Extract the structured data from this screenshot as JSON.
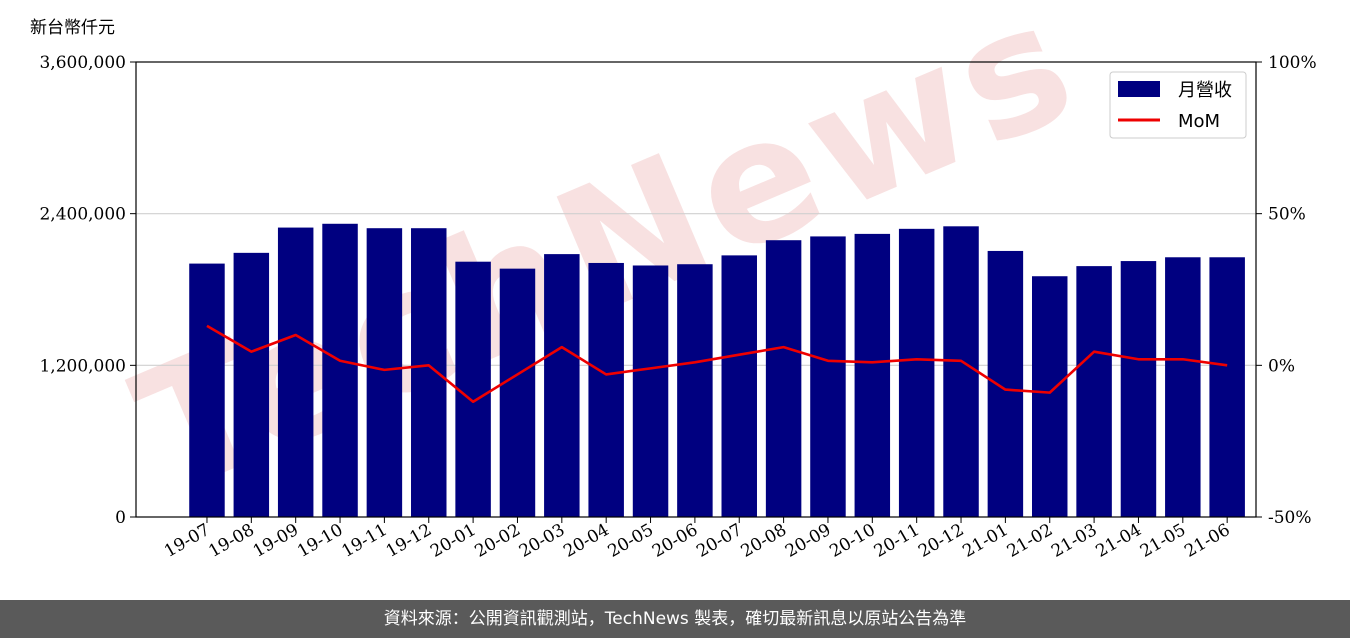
{
  "chart_data": {
    "type": "bar",
    "title": "",
    "ylabel_left": "新台幣仟元",
    "categories": [
      "19-07",
      "19-08",
      "19-09",
      "19-10",
      "19-11",
      "19-12",
      "20-01",
      "20-02",
      "20-03",
      "20-04",
      "20-05",
      "20-06",
      "20-07",
      "20-08",
      "20-09",
      "20-10",
      "20-11",
      "20-12",
      "21-01",
      "21-02",
      "21-03",
      "21-04",
      "21-05",
      "21-06"
    ],
    "series": [
      {
        "name": "月營收",
        "type": "bar",
        "axis": "left",
        "color": "#000080",
        "values": [
          2005000,
          2090000,
          2290000,
          2320000,
          2285000,
          2285000,
          2020000,
          1965000,
          2080000,
          2010000,
          1990000,
          2000000,
          2070000,
          2190000,
          2220000,
          2240000,
          2280000,
          2300000,
          2105000,
          1905000,
          1985000,
          2025000,
          2055000,
          2055000
        ]
      },
      {
        "name": "MoM",
        "type": "line",
        "axis": "right",
        "color": "#ee0000",
        "values": [
          13.0,
          4.5,
          10.0,
          1.5,
          -1.5,
          0.0,
          -12.0,
          -3.0,
          6.0,
          -3.0,
          -1.0,
          1.0,
          3.5,
          6.0,
          1.5,
          1.0,
          2.0,
          1.5,
          -8.0,
          -9.0,
          4.5,
          2.0,
          2.0,
          0.0
        ]
      }
    ],
    "y_left": {
      "min": 0,
      "max": 3600000,
      "ticks": [
        0,
        1200000,
        2400000,
        3600000
      ],
      "tick_labels": [
        "0",
        "1,200,000",
        "2,400,000",
        "3,600,000"
      ]
    },
    "y_right": {
      "min": -50,
      "max": 100,
      "ticks": [
        -50,
        0,
        50,
        100
      ],
      "tick_labels": [
        "-50%",
        "0%",
        "50%",
        "100%"
      ]
    },
    "grid": "horizontal",
    "legend": "top-right"
  },
  "watermark": "TechNews",
  "footer": {
    "source_text": "資料來源：公開資訊觀測站，TechNews 製表，確切最新訊息以原站公告為準"
  }
}
